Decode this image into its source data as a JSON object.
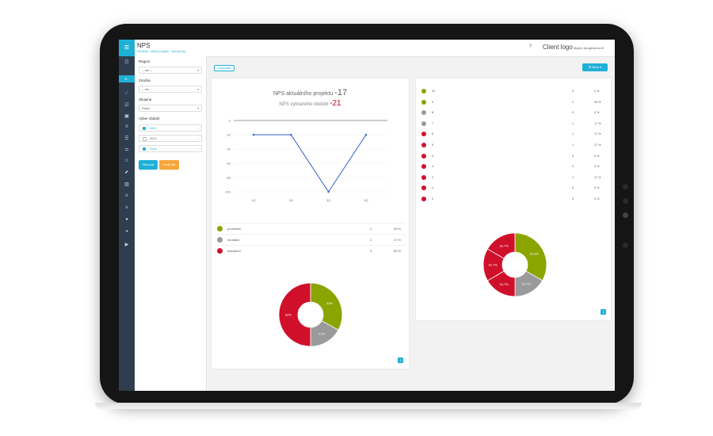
{
  "header": {
    "page_title": "NPS",
    "breadcrumb": "Přehledy · celkový projekt · vybraný obj.",
    "help": "?",
    "client_logo": "Client logo",
    "user": "Mojmír Ukrajinčenon"
  },
  "rail": {
    "menu_icon": "≡",
    "selected_label": "R..",
    "icons": [
      "list-icon",
      "line-chart-icon",
      "check-icon",
      "image-icon",
      "menu-icon",
      "align-icon",
      "sliders-icon",
      "smile-icon",
      "thumbs-up-icon",
      "bar-chart-icon",
      "trend-icon",
      "filter-icon",
      "chat-icon",
      "pie-icon",
      "play-icon"
    ]
  },
  "filters": {
    "region_label": "Region",
    "region_value": "-- vše --",
    "brand_label": "Značka",
    "brand_value": "-- vše --",
    "group_label": "Skupina",
    "group_value": "Retail",
    "period_label": "Vyber období",
    "years": [
      {
        "label": "2020",
        "checked": true
      },
      {
        "label": "2019",
        "checked": false
      },
      {
        "label": "2018",
        "checked": true
      }
    ],
    "filter_button": "Filtrovat",
    "reset_button": "Zrušit filtr"
  },
  "toolbar": {
    "tag": "4 formuláře",
    "action_button": "Akce"
  },
  "nps": {
    "project_label": "NPS aktuálního projektu",
    "project_value": "-17",
    "period_label": "NPS vybraného období",
    "period_value": "-21"
  },
  "summary_rows": [
    {
      "label": "promotéři",
      "count": "2",
      "pct": "33 %",
      "color": "#8aa400"
    },
    {
      "label": "neutrální",
      "count": "1",
      "pct": "17 %",
      "color": "#9a9a9a"
    },
    {
      "label": "detraktoři",
      "count": "3",
      "pct": "50 %",
      "color": "#d0102b"
    }
  ],
  "score_rows": [
    {
      "label": "10",
      "count": "0",
      "pct": "0 %",
      "color": "#8aa400"
    },
    {
      "label": "9",
      "count": "2",
      "pct": "33 %",
      "color": "#8aa400"
    },
    {
      "label": "8",
      "count": "0",
      "pct": "0 %",
      "color": "#9a9a9a"
    },
    {
      "label": "7",
      "count": "1",
      "pct": "17 %",
      "color": "#9a9a9a"
    },
    {
      "label": "6",
      "count": "1",
      "pct": "17 %",
      "color": "#d0102b"
    },
    {
      "label": "5",
      "count": "1",
      "pct": "17 %",
      "color": "#d0102b"
    },
    {
      "label": "4",
      "count": "0",
      "pct": "0 %",
      "color": "#d0102b"
    },
    {
      "label": "3",
      "count": "0",
      "pct": "0 %",
      "color": "#d0102b"
    },
    {
      "label": "2",
      "count": "1",
      "pct": "17 %",
      "color": "#d0102b"
    },
    {
      "label": "1",
      "count": "0",
      "pct": "0 %",
      "color": "#d0102b"
    },
    {
      "label": "0",
      "count": "0",
      "pct": "0 %",
      "color": "#d0102b"
    }
  ],
  "chart_data": [
    {
      "type": "line",
      "categories": [
        "1Q",
        "2Q",
        "3Q",
        "4Q"
      ],
      "values": [
        -20,
        -20,
        -100,
        -20
      ],
      "ylim": [
        -100,
        0
      ],
      "yticks": [
        "0",
        "-20",
        "-40",
        "-60",
        "-80",
        "-100"
      ],
      "ytick_values": [
        0,
        -20,
        -40,
        -60,
        -80,
        -100
      ],
      "color": "#2f5fc4"
    },
    {
      "type": "pie",
      "donut": true,
      "labels": [
        "promotéři",
        "neutrální",
        "detraktoři"
      ],
      "values": [
        33,
        17,
        50
      ],
      "value_labels": [
        "33%",
        "17%",
        "50%"
      ],
      "colors": [
        "#8aa400",
        "#9a9a9a",
        "#d0102b"
      ]
    },
    {
      "type": "pie",
      "donut": true,
      "labels": [
        "9",
        "7",
        "6",
        "5",
        "2"
      ],
      "values": [
        33.3,
        16.7,
        16.7,
        16.7,
        16.7
      ],
      "value_labels": [
        "33.3%",
        "16.7%",
        "16.7%",
        "16.7%",
        "16.7%"
      ],
      "colors": [
        "#8aa400",
        "#9a9a9a",
        "#d0102b",
        "#d0102b",
        "#d0102b"
      ]
    }
  ]
}
